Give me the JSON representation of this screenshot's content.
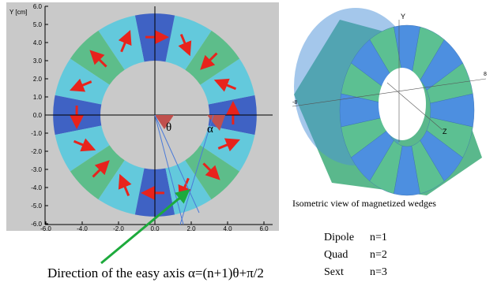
{
  "plot": {
    "y_label": "Y [cm]",
    "yticks": [
      "6.0",
      "5.0",
      "4.0",
      "3.0",
      "2.0",
      "1.0",
      "0.0",
      "-1.0",
      "-2.0",
      "-3.0",
      "-4.0",
      "-5.0",
      "-6.0"
    ],
    "xticks": [
      "-6.0",
      "-4.0",
      "-2.0",
      "0.0",
      "2.0",
      "4.0",
      "6.0"
    ],
    "theta_label": "θ",
    "alpha_label": "α"
  },
  "isometric": {
    "axis_labels": [
      "Y",
      "Z",
      "-8",
      "8"
    ],
    "caption": "Isometric view of magnetized wedges"
  },
  "multipoles": [
    {
      "name": "Dipole",
      "order": "n=1"
    },
    {
      "name": "Quad",
      "order": "n=2"
    },
    {
      "name": "Sext",
      "order": "n=3"
    }
  ],
  "easy_axis_note": "Direction of the easy axis α=(n+1)θ+π/2"
}
